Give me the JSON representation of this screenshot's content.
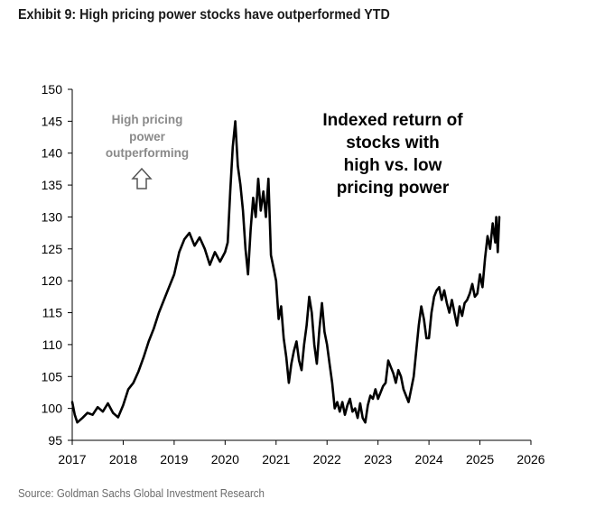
{
  "header": {
    "title": "Exhibit 9: High pricing power stocks have outperformed YTD"
  },
  "footer": {
    "source": "Source: Goldman Sachs Global Investment Research"
  },
  "chart_data": {
    "type": "line",
    "title": "",
    "xlabel": "",
    "ylabel": "",
    "xlim": [
      2017,
      2026
    ],
    "ylim": [
      95,
      150
    ],
    "x_ticks": [
      "2017",
      "2018",
      "2019",
      "2020",
      "2021",
      "2022",
      "2023",
      "2024",
      "2025",
      "2026"
    ],
    "y_ticks": [
      "95",
      "100",
      "105",
      "110",
      "115",
      "120",
      "125",
      "130",
      "135",
      "140",
      "145",
      "150"
    ],
    "grid": false,
    "legend": "none",
    "line_color": "#000000",
    "annotations": {
      "direction_note": [
        "High pricing",
        "power",
        "outperforming"
      ],
      "direction_icon": "up-arrow-outline-icon",
      "series_label": [
        "Indexed return of",
        "stocks with",
        "high vs. low",
        "pricing power"
      ]
    },
    "series": [
      {
        "points": [
          [
            2017.0,
            101.0
          ],
          [
            2017.05,
            99.0
          ],
          [
            2017.1,
            97.8
          ],
          [
            2017.2,
            98.5
          ],
          [
            2017.3,
            99.3
          ],
          [
            2017.4,
            99.0
          ],
          [
            2017.5,
            100.2
          ],
          [
            2017.6,
            99.5
          ],
          [
            2017.7,
            100.8
          ],
          [
            2017.8,
            99.3
          ],
          [
            2017.9,
            98.6
          ],
          [
            2018.0,
            100.5
          ],
          [
            2018.1,
            103.0
          ],
          [
            2018.2,
            104.0
          ],
          [
            2018.3,
            105.8
          ],
          [
            2018.4,
            108.0
          ],
          [
            2018.5,
            110.5
          ],
          [
            2018.6,
            112.5
          ],
          [
            2018.7,
            115.0
          ],
          [
            2018.8,
            117.0
          ],
          [
            2018.9,
            119.0
          ],
          [
            2019.0,
            121.0
          ],
          [
            2019.1,
            124.5
          ],
          [
            2019.2,
            126.5
          ],
          [
            2019.3,
            127.5
          ],
          [
            2019.4,
            125.5
          ],
          [
            2019.5,
            126.8
          ],
          [
            2019.6,
            125.0
          ],
          [
            2019.7,
            122.5
          ],
          [
            2019.8,
            124.5
          ],
          [
            2019.9,
            123.0
          ],
          [
            2020.0,
            124.5
          ],
          [
            2020.05,
            126.0
          ],
          [
            2020.1,
            134.0
          ],
          [
            2020.15,
            141.0
          ],
          [
            2020.2,
            145.0
          ],
          [
            2020.25,
            138.0
          ],
          [
            2020.3,
            135.0
          ],
          [
            2020.35,
            131.0
          ],
          [
            2020.4,
            125.0
          ],
          [
            2020.45,
            121.0
          ],
          [
            2020.5,
            128.0
          ],
          [
            2020.55,
            133.0
          ],
          [
            2020.6,
            130.0
          ],
          [
            2020.65,
            136.0
          ],
          [
            2020.7,
            131.0
          ],
          [
            2020.75,
            134.0
          ],
          [
            2020.8,
            130.0
          ],
          [
            2020.85,
            136.0
          ],
          [
            2020.9,
            124.0
          ],
          [
            2020.95,
            122.0
          ],
          [
            2021.0,
            120.0
          ],
          [
            2021.05,
            114.0
          ],
          [
            2021.1,
            116.0
          ],
          [
            2021.15,
            111.0
          ],
          [
            2021.2,
            108.0
          ],
          [
            2021.25,
            104.0
          ],
          [
            2021.3,
            107.0
          ],
          [
            2021.35,
            109.0
          ],
          [
            2021.4,
            110.5
          ],
          [
            2021.45,
            107.5
          ],
          [
            2021.5,
            106.0
          ],
          [
            2021.55,
            110.0
          ],
          [
            2021.6,
            113.0
          ],
          [
            2021.65,
            117.5
          ],
          [
            2021.7,
            115.0
          ],
          [
            2021.75,
            110.0
          ],
          [
            2021.8,
            107.0
          ],
          [
            2021.85,
            112.5
          ],
          [
            2021.9,
            116.5
          ],
          [
            2021.95,
            112.0
          ],
          [
            2022.0,
            110.0
          ],
          [
            2022.05,
            107.0
          ],
          [
            2022.1,
            104.0
          ],
          [
            2022.15,
            100.0
          ],
          [
            2022.2,
            101.0
          ],
          [
            2022.25,
            99.5
          ],
          [
            2022.3,
            101.0
          ],
          [
            2022.35,
            99.0
          ],
          [
            2022.4,
            100.5
          ],
          [
            2022.45,
            101.5
          ],
          [
            2022.5,
            99.5
          ],
          [
            2022.55,
            100.0
          ],
          [
            2022.6,
            98.5
          ],
          [
            2022.65,
            100.8
          ],
          [
            2022.7,
            98.5
          ],
          [
            2022.75,
            97.8
          ],
          [
            2022.8,
            100.5
          ],
          [
            2022.85,
            102.0
          ],
          [
            2022.9,
            101.5
          ],
          [
            2022.95,
            103.0
          ],
          [
            2023.0,
            101.5
          ],
          [
            2023.05,
            102.5
          ],
          [
            2023.1,
            103.5
          ],
          [
            2023.15,
            104.0
          ],
          [
            2023.2,
            107.5
          ],
          [
            2023.25,
            106.5
          ],
          [
            2023.3,
            105.5
          ],
          [
            2023.35,
            104.0
          ],
          [
            2023.4,
            106.0
          ],
          [
            2023.45,
            105.0
          ],
          [
            2023.5,
            103.0
          ],
          [
            2023.55,
            102.0
          ],
          [
            2023.6,
            101.0
          ],
          [
            2023.65,
            103.0
          ],
          [
            2023.7,
            105.0
          ],
          [
            2023.75,
            109.0
          ],
          [
            2023.8,
            113.0
          ],
          [
            2023.85,
            116.0
          ],
          [
            2023.9,
            114.0
          ],
          [
            2023.95,
            111.0
          ],
          [
            2024.0,
            111.0
          ],
          [
            2024.05,
            115.0
          ],
          [
            2024.1,
            117.5
          ],
          [
            2024.15,
            118.5
          ],
          [
            2024.2,
            119.0
          ],
          [
            2024.25,
            117.0
          ],
          [
            2024.3,
            118.5
          ],
          [
            2024.35,
            116.5
          ],
          [
            2024.4,
            115.0
          ],
          [
            2024.45,
            117.0
          ],
          [
            2024.5,
            115.0
          ],
          [
            2024.55,
            113.0
          ],
          [
            2024.6,
            116.0
          ],
          [
            2024.65,
            114.5
          ],
          [
            2024.7,
            116.5
          ],
          [
            2024.75,
            117.0
          ],
          [
            2024.8,
            118.0
          ],
          [
            2024.85,
            119.5
          ],
          [
            2024.9,
            117.5
          ],
          [
            2024.95,
            118.0
          ],
          [
            2025.0,
            121.0
          ],
          [
            2025.05,
            119.0
          ],
          [
            2025.1,
            123.5
          ],
          [
            2025.15,
            127.0
          ],
          [
            2025.2,
            125.0
          ],
          [
            2025.25,
            129.0
          ],
          [
            2025.3,
            126.0
          ],
          [
            2025.32,
            130.0
          ],
          [
            2025.35,
            124.5
          ],
          [
            2025.38,
            130.0
          ]
        ]
      }
    ]
  }
}
